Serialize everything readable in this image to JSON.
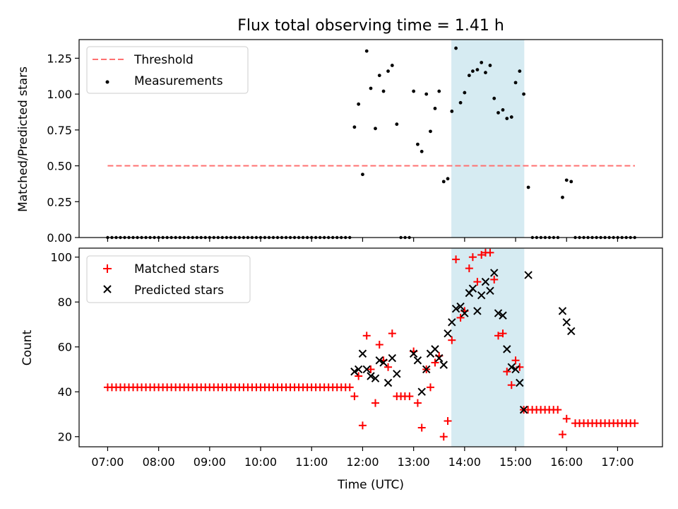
{
  "chart_data": [
    {
      "type": "scatter",
      "title": "Flux total observing time = 1.41 h",
      "xlabel": "",
      "ylabel": "Matched/Predicted stars",
      "xlim": [
        6.44,
        17.88
      ],
      "ylim": [
        0,
        1.38
      ],
      "xticks": [
        7,
        8,
        9,
        10,
        11,
        12,
        13,
        14,
        15,
        16,
        17
      ],
      "yticks": [
        0.0,
        0.25,
        0.5,
        0.75,
        1.0,
        1.25
      ],
      "ytick_labels": [
        "0.00",
        "0.25",
        "0.50",
        "0.75",
        "1.00",
        "1.25"
      ],
      "shaded_region": {
        "x0": 13.74,
        "x1": 15.17,
        "color": "#add8e6"
      },
      "threshold": {
        "name": "Threshold",
        "value": 0.5,
        "x0": 7.0,
        "x1": 17.34,
        "color": "#ff7070"
      },
      "legend": [
        "Threshold",
        "Measurements"
      ],
      "legend_position": "upper-left",
      "series": [
        {
          "name": "Measurements",
          "color": "#000000",
          "x": [
            11.84,
            11.92,
            12.0,
            12.08,
            12.16,
            12.25,
            12.33,
            12.41,
            12.5,
            12.58,
            12.67,
            13.0,
            13.08,
            13.16,
            13.25,
            13.33,
            13.42,
            13.5,
            13.59,
            13.67,
            13.75,
            13.83,
            13.92,
            14.0,
            14.09,
            14.16,
            14.25,
            14.33,
            14.41,
            14.5,
            14.58,
            14.66,
            14.75,
            14.83,
            14.92,
            15.0,
            15.08,
            15.16,
            15.25,
            15.92,
            16.0,
            16.09
          ],
          "y": [
            0.77,
            0.93,
            0.44,
            1.3,
            1.04,
            0.76,
            1.13,
            1.02,
            1.16,
            1.2,
            0.79,
            1.02,
            0.65,
            0.6,
            1.0,
            0.74,
            0.9,
            1.02,
            0.39,
            0.41,
            0.88,
            1.32,
            0.94,
            1.01,
            1.13,
            1.16,
            1.17,
            1.22,
            1.15,
            1.2,
            0.97,
            0.87,
            0.89,
            0.83,
            0.84,
            1.08,
            1.16,
            1.0,
            0.35,
            0.28,
            0.4,
            0.39
          ],
          "zero_runs": [
            [
              7.0,
              11.76
            ],
            [
              12.75,
              12.92
            ],
            [
              15.33,
              15.83
            ],
            [
              16.17,
              17.34
            ]
          ],
          "zero_step": 0.0833
        }
      ]
    },
    {
      "type": "scatter",
      "title": "",
      "xlabel": "Time (UTC)",
      "ylabel": "Count",
      "xlim": [
        6.44,
        17.88
      ],
      "ylim": [
        15.5,
        104
      ],
      "xticks": [
        7,
        8,
        9,
        10,
        11,
        12,
        13,
        14,
        15,
        16,
        17
      ],
      "xtick_labels": [
        "07:00",
        "08:00",
        "09:00",
        "10:00",
        "11:00",
        "12:00",
        "13:00",
        "14:00",
        "15:00",
        "16:00",
        "17:00"
      ],
      "yticks": [
        20,
        40,
        60,
        80,
        100
      ],
      "shaded_region": {
        "x0": 13.74,
        "x1": 15.17,
        "color": "#add8e6"
      },
      "legend": [
        "Matched stars",
        "Predicted stars"
      ],
      "legend_position": "upper-left",
      "series": [
        {
          "name": "Matched stars",
          "marker": "plus",
          "color": "#ff0000",
          "const_runs": [
            {
              "x0": 7.0,
              "x1": 11.76,
              "y": 42,
              "step": 0.0833
            },
            {
              "x0": 15.16,
              "x1": 15.83,
              "y": 32,
              "step": 0.0833
            },
            {
              "x0": 16.17,
              "x1": 17.34,
              "y": 26,
              "step": 0.0833
            }
          ],
          "x": [
            11.84,
            11.92,
            12.0,
            12.08,
            12.16,
            12.25,
            12.33,
            12.41,
            12.5,
            12.58,
            12.67,
            12.75,
            12.83,
            12.92,
            13.0,
            13.08,
            13.16,
            13.25,
            13.33,
            13.42,
            13.5,
            13.59,
            13.67,
            13.75,
            13.83,
            13.92,
            14.0,
            14.09,
            14.16,
            14.25,
            14.33,
            14.41,
            14.5,
            14.58,
            14.66,
            14.75,
            14.83,
            14.92,
            15.0,
            15.08,
            15.92,
            16.0
          ],
          "y": [
            38,
            47,
            25,
            65,
            50,
            35,
            61,
            54,
            51,
            66,
            38,
            38,
            38,
            38,
            58,
            35,
            24,
            50,
            42,
            53,
            56,
            20,
            27,
            63,
            99,
            73,
            76,
            95,
            100,
            89,
            101,
            102,
            102,
            90,
            65,
            66,
            49,
            43,
            54,
            51,
            21,
            28
          ]
        },
        {
          "name": "Predicted stars",
          "marker": "x",
          "color": "#000000",
          "x": [
            11.84,
            11.92,
            12.0,
            12.08,
            12.16,
            12.25,
            12.33,
            12.41,
            12.5,
            12.58,
            12.67,
            13.0,
            13.08,
            13.16,
            13.25,
            13.33,
            13.42,
            13.5,
            13.59,
            13.67,
            13.75,
            13.83,
            13.92,
            14.0,
            14.09,
            14.16,
            14.25,
            14.33,
            14.41,
            14.5,
            14.58,
            14.66,
            14.75,
            14.83,
            14.92,
            15.0,
            15.08,
            15.16,
            15.25,
            15.92,
            16.0,
            16.09
          ],
          "y": [
            49,
            50,
            57,
            50,
            47,
            46,
            54,
            53,
            44,
            55,
            48,
            57,
            54,
            40,
            50,
            57,
            59,
            55,
            52,
            66,
            71,
            77,
            78,
            75,
            84,
            86,
            76,
            83,
            89,
            85,
            93,
            75,
            74,
            59,
            51,
            50,
            44,
            32,
            92,
            76,
            71,
            67
          ]
        }
      ]
    }
  ]
}
